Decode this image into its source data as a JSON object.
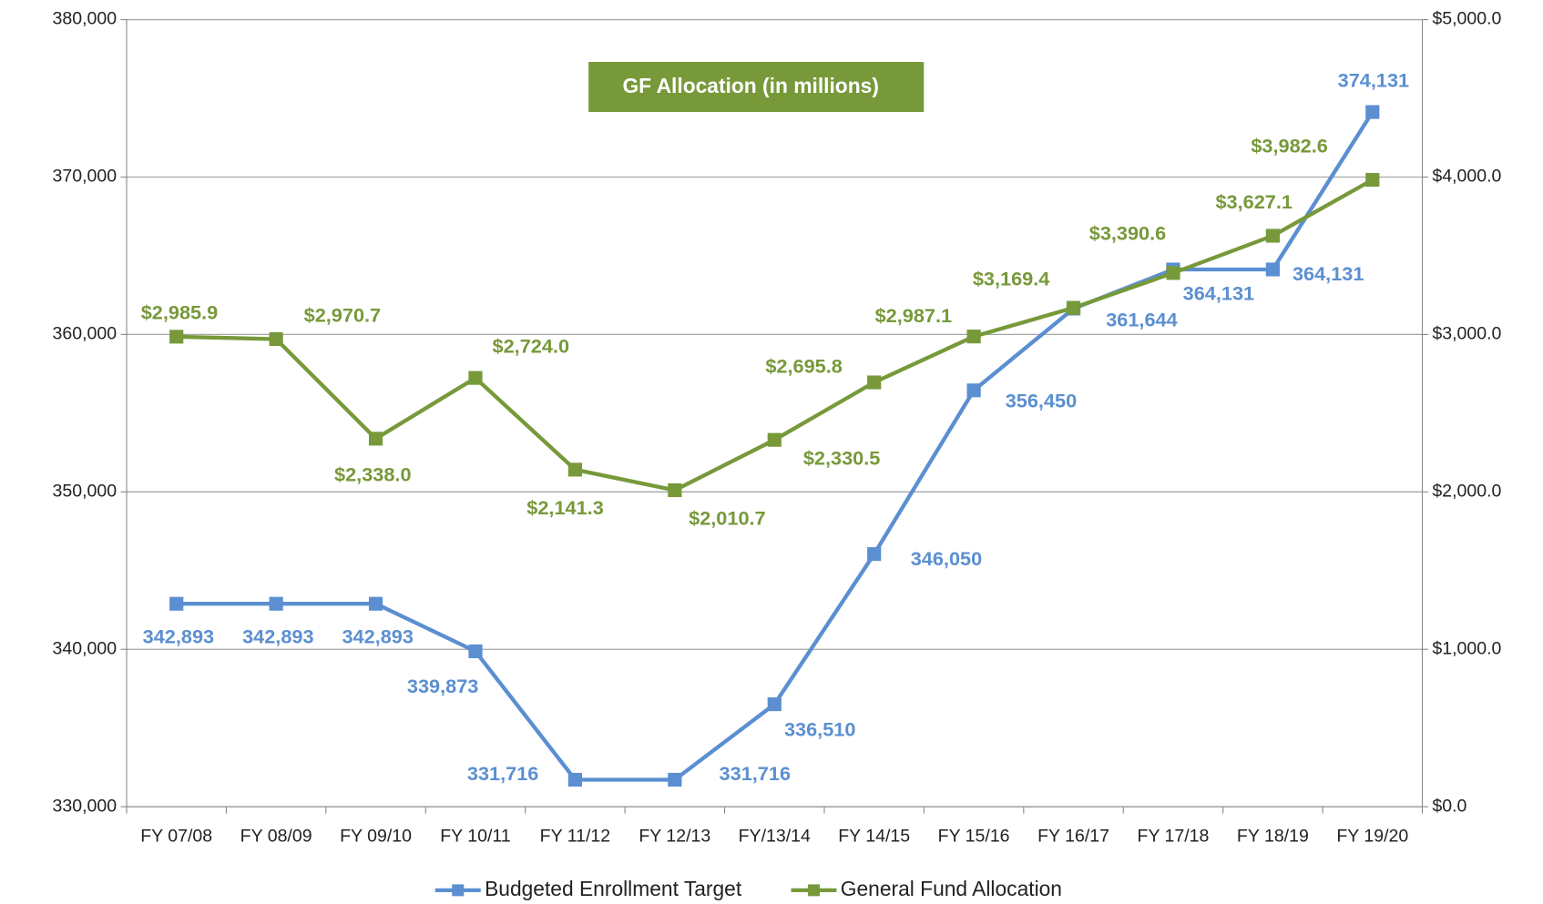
{
  "chart_data": {
    "type": "line",
    "annotation": "GF Allocation (in millions)",
    "categories": [
      "FY 07/08",
      "FY 08/09",
      "FY 09/10",
      "FY 10/11",
      "FY 11/12",
      "FY 12/13",
      "FY/13/14",
      "FY 14/15",
      "FY 15/16",
      "FY 16/17",
      "FY 17/18",
      "FY 18/19",
      "FY 19/20"
    ],
    "series": [
      {
        "name": "Budgeted Enrollment Target",
        "color": "#5b8fd1",
        "axis": "y",
        "values": [
          342893,
          342893,
          342893,
          339873,
          331716,
          331716,
          336510,
          346050,
          356450,
          361644,
          364131,
          364131,
          374131
        ],
        "value_labels": [
          "342,893",
          "342,893",
          "342,893",
          "339,873",
          "331,716",
          "331,716",
          "336,510",
          "346,050",
          "356,450",
          "361,644",
          "364,131",
          "364,131",
          "374,131"
        ]
      },
      {
        "name": "General Fund Allocation",
        "color": "#77993a",
        "axis": "y2",
        "values": [
          2985.9,
          2970.7,
          2338.0,
          2724.0,
          2141.3,
          2010.7,
          2330.5,
          2695.8,
          2987.1,
          3169.4,
          3390.6,
          3627.1,
          3982.6
        ],
        "value_labels": [
          "$2,985.9",
          "$2,970.7",
          "$2,338.0",
          "$2,724.0",
          "$2,141.3",
          "$2,010.7",
          "$2,330.5",
          "$2,695.8",
          "$2,987.1",
          "$3,169.4",
          "$3,390.6",
          "$3,627.1",
          "$3,982.6"
        ]
      }
    ],
    "ylim": [
      330000,
      380000
    ],
    "yticks": [
      {
        "value": 330000,
        "label": "330,000"
      },
      {
        "value": 340000,
        "label": "340,000"
      },
      {
        "value": 350000,
        "label": "350,000"
      },
      {
        "value": 360000,
        "label": "360,000"
      },
      {
        "value": 370000,
        "label": "370,000"
      },
      {
        "value": 380000,
        "label": "380,000"
      }
    ],
    "y2lim": [
      0,
      5000
    ],
    "y2ticks": [
      {
        "value": 0,
        "label": "$0.0"
      },
      {
        "value": 1000,
        "label": "$1,000.0"
      },
      {
        "value": 2000,
        "label": "$2,000.0"
      },
      {
        "value": 3000,
        "label": "$3,000.0"
      },
      {
        "value": 4000,
        "label": "$4,000.0"
      },
      {
        "value": 5000,
        "label": "$5,000.0"
      }
    ],
    "grid": true,
    "legend": "bottom"
  }
}
